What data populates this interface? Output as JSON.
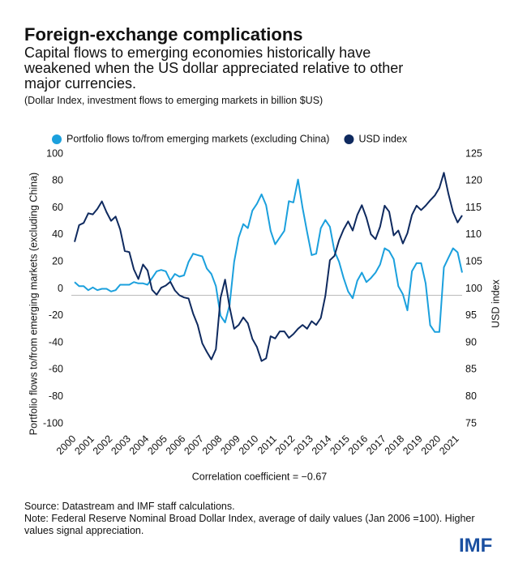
{
  "chart_data": {
    "type": "line",
    "title": "Foreign-exchange complications",
    "subtitle": "Capital flows to emerging economies historically have weakened when the US dollar appreciated relative to other major currencies.",
    "units_note": "(Dollar Index, investment flows to emerging markets in billion $US)",
    "y_label": "Portfolio flows to/from emerging markets (excluding China)",
    "y2_label": "USD index",
    "annotation": "Correlation coefficient = −0.67",
    "source": "Source: Datastream and IMF staff calculations.",
    "note": "Note: Federal Reserve Nominal Broad Dollar Index, average of daily values (Jan 2006 =100). Higher values signal appreciation.",
    "logo": "IMF",
    "legend": "top",
    "x": [
      2000,
      2000.25,
      2000.5,
      2000.75,
      2001,
      2001.25,
      2001.5,
      2001.75,
      2002,
      2002.25,
      2002.5,
      2002.75,
      2003,
      2003.25,
      2003.5,
      2003.75,
      2004,
      2004.25,
      2004.5,
      2004.75,
      2005,
      2005.25,
      2005.5,
      2005.75,
      2006,
      2006.25,
      2006.5,
      2006.75,
      2007,
      2007.25,
      2007.5,
      2007.75,
      2008,
      2008.25,
      2008.5,
      2008.75,
      2009,
      2009.25,
      2009.5,
      2009.75,
      2010,
      2010.25,
      2010.5,
      2010.75,
      2011,
      2011.25,
      2011.5,
      2011.75,
      2012,
      2012.25,
      2012.5,
      2012.75,
      2013,
      2013.25,
      2013.5,
      2013.75,
      2014,
      2014.25,
      2014.5,
      2014.75,
      2015,
      2015.25,
      2015.5,
      2015.75,
      2016,
      2016.25,
      2016.5,
      2016.75,
      2017,
      2017.25,
      2017.5,
      2017.75,
      2018,
      2018.25,
      2018.5,
      2018.75,
      2019,
      2019.25,
      2019.5,
      2019.75,
      2020,
      2020.25,
      2020.5,
      2020.75,
      2021,
      2021.25
    ],
    "xlim": [
      2000,
      2021.25
    ],
    "xticks": [
      2000,
      2001,
      2002,
      2003,
      2004,
      2005,
      2006,
      2007,
      2008,
      2009,
      2010,
      2011,
      2012,
      2013,
      2014,
      2015,
      2016,
      2017,
      2018,
      2019,
      2020,
      2021
    ],
    "ylim": [
      -100,
      100
    ],
    "yticks": [
      -100,
      -80,
      -60,
      -40,
      -20,
      0,
      20,
      40,
      60,
      80,
      100
    ],
    "y2lim": [
      75,
      125
    ],
    "y2ticks": [
      75,
      80,
      85,
      90,
      95,
      100,
      105,
      110,
      115,
      120,
      125
    ],
    "series": [
      {
        "name": "Portfolio flows to/from emerging markets (excluding China)",
        "color": "#1ba0dd",
        "values": [
          5,
          2,
          2,
          -1,
          1,
          -1,
          0,
          0,
          -2,
          -1,
          3,
          3,
          3,
          5,
          4,
          4,
          3,
          8,
          13,
          14,
          13,
          6,
          11,
          9,
          10,
          20,
          26,
          25,
          24,
          15,
          11,
          2,
          -20,
          -25,
          -12,
          20,
          38,
          48,
          45,
          58,
          63,
          70,
          62,
          43,
          33,
          38,
          43,
          65,
          64,
          81,
          60,
          42,
          25,
          26,
          45,
          51,
          46,
          28,
          20,
          8,
          -2,
          -7,
          6,
          12,
          5,
          8,
          12,
          18,
          30,
          28,
          22,
          2,
          -4,
          -16,
          13,
          19,
          19,
          4,
          -27,
          -32,
          -32,
          16,
          23,
          30,
          27,
          12
        ]
      },
      {
        "name": "USD index",
        "color": "#0f2a5f",
        "axis": "y2",
        "values": [
          108.7,
          111.8,
          112.2,
          114,
          113.8,
          114.8,
          116.2,
          114.2,
          112.6,
          113.4,
          111,
          107,
          106.8,
          103.6,
          101.8,
          104.5,
          103.4,
          99.8,
          98.9,
          100.2,
          100.6,
          101.3,
          99.7,
          98.8,
          98.4,
          98.2,
          95.4,
          93.3,
          89.9,
          88.3,
          86.9,
          88.8,
          98.3,
          101.7,
          96.6,
          92.6,
          93.3,
          94.7,
          93.6,
          90.7,
          89.2,
          86.6,
          87.1,
          91.2,
          90.8,
          92.1,
          92.1,
          90.9,
          91.6,
          92.6,
          93.3,
          92.6,
          94,
          93.3,
          94.6,
          98.7,
          105.3,
          106.1,
          109,
          111,
          112.5,
          110.8,
          113.7,
          115.5,
          113.2,
          110.1,
          109.2,
          111.5,
          115.4,
          114.3,
          109.9,
          110.8,
          108.4,
          110.3,
          113.7,
          115.4,
          114.6,
          115.4,
          116.4,
          117.3,
          118.7,
          121.5,
          117.6,
          114.2,
          112.3,
          113.6
        ]
      }
    ]
  }
}
